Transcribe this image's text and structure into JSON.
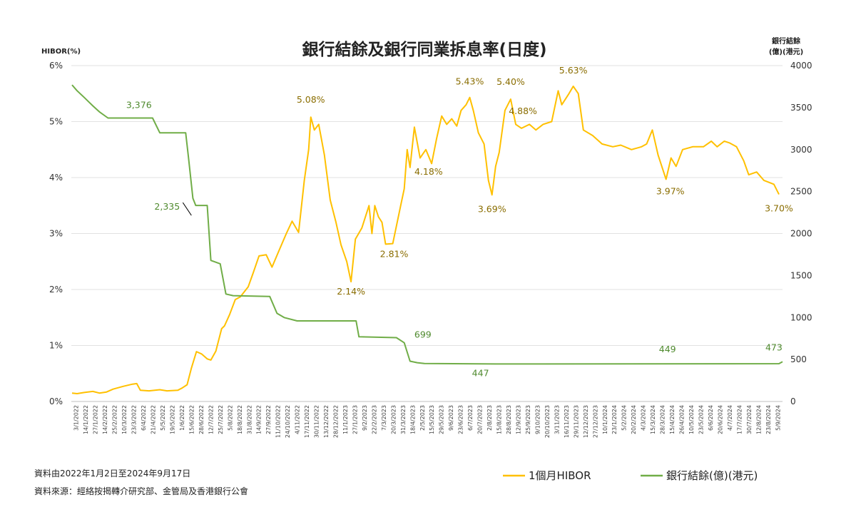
{
  "chart_data": {
    "type": "line",
    "title": "銀行結餘及銀行同業拆息率(日度)",
    "y_left_label": "HIBOR(%)",
    "y_right_label_line1": "銀行結餘",
    "y_right_label_line2": "(億)(港元)",
    "y_left_ticks": [
      "0%",
      "1%",
      "2%",
      "3%",
      "4%",
      "5%",
      "6%"
    ],
    "y_left_range": [
      0,
      6
    ],
    "y_right_ticks": [
      "0",
      "500",
      "1000",
      "1500",
      "2000",
      "2500",
      "3000",
      "3500",
      "4000"
    ],
    "y_right_range": [
      0,
      4000
    ],
    "x_range": [
      "2022-01-02",
      "2024-09-17"
    ],
    "x_tick_labels": [
      "3/1/2022",
      "14/1/2022",
      "27/1/2022",
      "14/2/2022",
      "25/2/2022",
      "10/3/2022",
      "23/3/2022",
      "6/4/2022",
      "21/4/2022",
      "5/5/2022",
      "19/5/2022",
      "1/6/2022",
      "15/6/2022",
      "28/6/2022",
      "12/7/2022",
      "25/7/2022",
      "5/8/2022",
      "18/8/2022",
      "31/8/2022",
      "14/9/2022",
      "27/9/2022",
      "11/10/2022",
      "24/10/2022",
      "4/11/2022",
      "17/11/2022",
      "30/11/2022",
      "13/12/2022",
      "28/12/2022",
      "11/1/2023",
      "27/1/2023",
      "9/2/2023",
      "22/2/2023",
      "7/3/2023",
      "20/3/2023",
      "31/3/2023",
      "18/4/2023",
      "2/5/2023",
      "15/5/2023",
      "29/5/2023",
      "9/6/2023",
      "23/6/2023",
      "6/7/2023",
      "20/7/2023",
      "2/8/2023",
      "15/8/2023",
      "28/8/2023",
      "12/9/2023",
      "25/9/2023",
      "9/10/2023",
      "20/10/2023",
      "3/11/2023",
      "16/11/2023",
      "29/11/2023",
      "12/12/2023",
      "27/12/2023",
      "10/1/2024",
      "23/1/2024",
      "5/2/2024",
      "20/2/2024",
      "4/3/2024",
      "15/3/2024",
      "28/3/2024",
      "15/4/2024",
      "26/4/2024",
      "10/5/2024",
      "23/5/2024",
      "6/6/2024",
      "20/6/2024",
      "4/7/2024",
      "17/7/2024",
      "30/7/2024",
      "12/8/2024",
      "23/8/2024",
      "5/9/2024"
    ],
    "series": [
      {
        "name": "1個月HIBOR",
        "color": "#FFC000",
        "axis": "left",
        "points": [
          [
            "2022-01-03",
            0.15
          ],
          [
            "2022-01-10",
            0.14
          ],
          [
            "2022-01-20",
            0.16
          ],
          [
            "2022-02-01",
            0.18
          ],
          [
            "2022-02-10",
            0.15
          ],
          [
            "2022-02-20",
            0.17
          ],
          [
            "2022-03-01",
            0.22
          ],
          [
            "2022-03-15",
            0.27
          ],
          [
            "2022-03-28",
            0.31
          ],
          [
            "2022-04-03",
            0.32
          ],
          [
            "2022-04-08",
            0.2
          ],
          [
            "2022-04-20",
            0.19
          ],
          [
            "2022-05-05",
            0.21
          ],
          [
            "2022-05-15",
            0.19
          ],
          [
            "2022-05-30",
            0.2
          ],
          [
            "2022-06-05",
            0.24
          ],
          [
            "2022-06-12",
            0.3
          ],
          [
            "2022-06-18",
            0.6
          ],
          [
            "2022-06-25",
            0.89
          ],
          [
            "2022-07-02",
            0.85
          ],
          [
            "2022-07-10",
            0.76
          ],
          [
            "2022-07-15",
            0.74
          ],
          [
            "2022-07-22",
            0.9
          ],
          [
            "2022-07-30",
            1.3
          ],
          [
            "2022-08-03",
            1.35
          ],
          [
            "2022-08-10",
            1.55
          ],
          [
            "2022-08-18",
            1.82
          ],
          [
            "2022-08-25",
            1.87
          ],
          [
            "2022-09-05",
            2.05
          ],
          [
            "2022-09-12",
            2.3
          ],
          [
            "2022-09-20",
            2.6
          ],
          [
            "2022-09-30",
            2.62
          ],
          [
            "2022-10-08",
            2.4
          ],
          [
            "2022-10-18",
            2.7
          ],
          [
            "2022-10-28",
            3.0
          ],
          [
            "2022-11-05",
            3.22
          ],
          [
            "2022-11-14",
            3.02
          ],
          [
            "2022-11-22",
            3.95
          ],
          [
            "2022-11-28",
            4.5
          ],
          [
            "2022-12-01",
            5.08
          ],
          [
            "2022-12-06",
            4.85
          ],
          [
            "2022-12-12",
            4.95
          ],
          [
            "2022-12-20",
            4.4
          ],
          [
            "2022-12-28",
            3.6
          ],
          [
            "2023-01-05",
            3.2
          ],
          [
            "2023-01-12",
            2.8
          ],
          [
            "2023-01-20",
            2.5
          ],
          [
            "2023-01-26",
            2.14
          ],
          [
            "2023-02-01",
            2.9
          ],
          [
            "2023-02-10",
            3.1
          ],
          [
            "2023-02-20",
            3.5
          ],
          [
            "2023-02-24",
            3.0
          ],
          [
            "2023-02-28",
            3.5
          ],
          [
            "2023-03-05",
            3.3
          ],
          [
            "2023-03-10",
            3.2
          ],
          [
            "2023-03-15",
            2.81
          ],
          [
            "2023-03-25",
            2.82
          ],
          [
            "2023-04-05",
            3.5
          ],
          [
            "2023-04-10",
            3.8
          ],
          [
            "2023-04-14",
            4.5
          ],
          [
            "2023-04-18",
            4.18
          ],
          [
            "2023-04-24",
            4.9
          ],
          [
            "2023-05-02",
            4.35
          ],
          [
            "2023-05-10",
            4.5
          ],
          [
            "2023-05-18",
            4.25
          ],
          [
            "2023-05-25",
            4.7
          ],
          [
            "2023-06-01",
            5.1
          ],
          [
            "2023-06-08",
            4.95
          ],
          [
            "2023-06-15",
            5.05
          ],
          [
            "2023-06-22",
            4.92
          ],
          [
            "2023-06-28",
            5.2
          ],
          [
            "2023-07-05",
            5.3
          ],
          [
            "2023-07-10",
            5.43
          ],
          [
            "2023-07-15",
            5.2
          ],
          [
            "2023-07-22",
            4.8
          ],
          [
            "2023-07-30",
            4.6
          ],
          [
            "2023-08-05",
            3.95
          ],
          [
            "2023-08-10",
            3.69
          ],
          [
            "2023-08-15",
            4.2
          ],
          [
            "2023-08-20",
            4.45
          ],
          [
            "2023-08-28",
            5.2
          ],
          [
            "2023-09-05",
            5.4
          ],
          [
            "2023-09-12",
            4.95
          ],
          [
            "2023-09-20",
            4.88
          ],
          [
            "2023-10-01",
            4.95
          ],
          [
            "2023-10-10",
            4.85
          ],
          [
            "2023-10-20",
            4.95
          ],
          [
            "2023-11-01",
            5.0
          ],
          [
            "2023-11-10",
            5.55
          ],
          [
            "2023-11-15",
            5.3
          ],
          [
            "2023-11-25",
            5.5
          ],
          [
            "2023-12-01",
            5.63
          ],
          [
            "2023-12-08",
            5.5
          ],
          [
            "2023-12-15",
            4.85
          ],
          [
            "2023-12-28",
            4.75
          ],
          [
            "2024-01-10",
            4.6
          ],
          [
            "2024-01-25",
            4.55
          ],
          [
            "2024-02-05",
            4.58
          ],
          [
            "2024-02-20",
            4.5
          ],
          [
            "2024-03-05",
            4.55
          ],
          [
            "2024-03-12",
            4.6
          ],
          [
            "2024-03-20",
            4.85
          ],
          [
            "2024-03-28",
            4.4
          ],
          [
            "2024-04-08",
            3.97
          ],
          [
            "2024-04-15",
            4.35
          ],
          [
            "2024-04-22",
            4.2
          ],
          [
            "2024-05-01",
            4.5
          ],
          [
            "2024-05-15",
            4.55
          ],
          [
            "2024-05-30",
            4.55
          ],
          [
            "2024-06-10",
            4.65
          ],
          [
            "2024-06-18",
            4.55
          ],
          [
            "2024-06-28",
            4.65
          ],
          [
            "2024-07-05",
            4.62
          ],
          [
            "2024-07-15",
            4.55
          ],
          [
            "2024-07-25",
            4.3
          ],
          [
            "2024-08-01",
            4.05
          ],
          [
            "2024-08-12",
            4.1
          ],
          [
            "2024-08-22",
            3.95
          ],
          [
            "2024-09-05",
            3.88
          ],
          [
            "2024-09-12",
            3.7
          ]
        ]
      },
      {
        "name": "銀行結餘(億)(港元)",
        "color": "#70AD47",
        "axis": "right",
        "points": [
          [
            "2022-01-03",
            3770
          ],
          [
            "2022-01-10",
            3700
          ],
          [
            "2022-01-20",
            3620
          ],
          [
            "2022-02-01",
            3520
          ],
          [
            "2022-02-10",
            3450
          ],
          [
            "2022-02-22",
            3376
          ],
          [
            "2022-04-25",
            3376
          ],
          [
            "2022-05-05",
            3200
          ],
          [
            "2022-06-10",
            3200
          ],
          [
            "2022-06-14",
            2900
          ],
          [
            "2022-06-20",
            2420
          ],
          [
            "2022-06-24",
            2335
          ],
          [
            "2022-07-10",
            2335
          ],
          [
            "2022-07-15",
            1680
          ],
          [
            "2022-07-28",
            1640
          ],
          [
            "2022-08-05",
            1280
          ],
          [
            "2022-08-15",
            1260
          ],
          [
            "2022-10-05",
            1250
          ],
          [
            "2022-10-15",
            1050
          ],
          [
            "2022-10-25",
            1000
          ],
          [
            "2022-11-12",
            960
          ],
          [
            "2023-02-02",
            960
          ],
          [
            "2023-02-06",
            770
          ],
          [
            "2023-03-30",
            760
          ],
          [
            "2023-04-10",
            699
          ],
          [
            "2023-04-18",
            480
          ],
          [
            "2023-04-28",
            462
          ],
          [
            "2023-05-08",
            452
          ],
          [
            "2023-08-15",
            447
          ],
          [
            "2024-09-12",
            450
          ],
          [
            "2024-09-17",
            473
          ]
        ]
      }
    ],
    "annotations": [
      {
        "text": "3,376",
        "series": 1,
        "date": "2022-04-06",
        "value": 3376
      },
      {
        "text": "2,335",
        "series": 1,
        "date": "2022-06-14",
        "value": 2335
      },
      {
        "text": "699",
        "series": 1,
        "date": "2023-04-22",
        "value": 699
      },
      {
        "text": "447",
        "series": 1,
        "date": "2023-07-25",
        "value": 447
      },
      {
        "text": "449",
        "series": 1,
        "date": "2024-04-10",
        "value": 449
      },
      {
        "text": "473",
        "series": 1,
        "date": "2024-09-05",
        "value": 473
      },
      {
        "text": "5.08%",
        "series": 0,
        "date": "2022-12-01",
        "value": 5.08
      },
      {
        "text": "2.14%",
        "series": 0,
        "date": "2023-01-26",
        "value": 2.14
      },
      {
        "text": "2.81%",
        "series": 0,
        "date": "2023-03-15",
        "value": 2.81
      },
      {
        "text": "4.18%",
        "series": 0,
        "date": "2023-04-18",
        "value": 4.18
      },
      {
        "text": "5.43%",
        "series": 0,
        "date": "2023-07-10",
        "value": 5.43
      },
      {
        "text": "3.69%",
        "series": 0,
        "date": "2023-08-10",
        "value": 3.69
      },
      {
        "text": "5.40%",
        "series": 0,
        "date": "2023-09-05",
        "value": 5.4
      },
      {
        "text": "4.88%",
        "series": 0,
        "date": "2023-09-20",
        "value": 4.88
      },
      {
        "text": "5.63%",
        "series": 0,
        "date": "2023-12-01",
        "value": 5.63
      },
      {
        "text": "3.97%",
        "series": 0,
        "date": "2024-04-08",
        "value": 3.97
      },
      {
        "text": "3.70%",
        "series": 0,
        "date": "2024-09-12",
        "value": 3.7
      }
    ],
    "grid": true,
    "legend_position": "bottom-right"
  },
  "footer": {
    "line1": "資料由2022年1月2日至2024年9月17日",
    "line2": "資料來源：經絡按揭轉介研究部、金管局及香港銀行公會"
  },
  "legend": [
    {
      "label": "1個月HIBOR",
      "color": "#FFC000"
    },
    {
      "label": "銀行結餘(億)(港元)",
      "color": "#70AD47"
    }
  ]
}
